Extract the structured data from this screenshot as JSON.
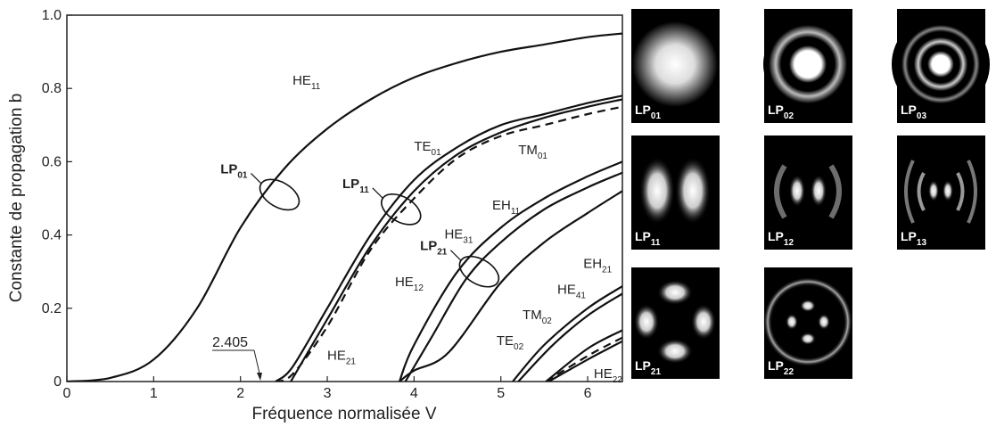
{
  "chart_data": {
    "type": "line",
    "xlabel": "Fréquence normalisée V",
    "ylabel": "Constante de propagation b",
    "xlim": [
      0,
      6.4
    ],
    "ylim": [
      0,
      1.0
    ],
    "x_ticks": [
      "0",
      "1",
      "2",
      "3",
      "4",
      "5",
      "6"
    ],
    "y_ticks": [
      "0",
      "0.2",
      "0.4",
      "0.6",
      "0.8",
      "1.0"
    ],
    "cutoff_annotation": {
      "text": "2.405",
      "x": 2.405
    },
    "series": [
      {
        "name": "HE11",
        "base": "HE",
        "sub": "11",
        "style": "solid",
        "points": [
          [
            0,
            0
          ],
          [
            0.5,
            0.01
          ],
          [
            1,
            0.06
          ],
          [
            1.5,
            0.2
          ],
          [
            2,
            0.42
          ],
          [
            2.5,
            0.58
          ],
          [
            3,
            0.69
          ],
          [
            3.5,
            0.77
          ],
          [
            4,
            0.83
          ],
          [
            4.5,
            0.87
          ],
          [
            5,
            0.9
          ],
          [
            5.5,
            0.92
          ],
          [
            6,
            0.94
          ],
          [
            6.4,
            0.95
          ]
        ]
      },
      {
        "name": "TE01",
        "base": "TE",
        "sub": "01",
        "style": "solid",
        "points": [
          [
            2.405,
            0
          ],
          [
            2.6,
            0.04
          ],
          [
            3,
            0.2
          ],
          [
            3.5,
            0.4
          ],
          [
            4,
            0.55
          ],
          [
            4.5,
            0.64
          ],
          [
            5,
            0.7
          ],
          [
            5.5,
            0.73
          ],
          [
            6,
            0.76
          ],
          [
            6.4,
            0.78
          ]
        ]
      },
      {
        "name": "HE21",
        "base": "HE",
        "sub": "21",
        "style": "solid",
        "points": [
          [
            2.58,
            0
          ],
          [
            3,
            0.17
          ],
          [
            3.5,
            0.37
          ],
          [
            4,
            0.52
          ],
          [
            4.5,
            0.62
          ],
          [
            5,
            0.68
          ],
          [
            5.5,
            0.72
          ],
          [
            6,
            0.75
          ],
          [
            6.4,
            0.77
          ]
        ]
      },
      {
        "name": "TM01",
        "base": "TM",
        "sub": "01",
        "style": "dashed",
        "points": [
          [
            2.405,
            0
          ],
          [
            2.6,
            0.02
          ],
          [
            3,
            0.15
          ],
          [
            3.5,
            0.36
          ],
          [
            4,
            0.5
          ],
          [
            4.5,
            0.61
          ],
          [
            5,
            0.67
          ],
          [
            5.5,
            0.7
          ],
          [
            6,
            0.73
          ],
          [
            6.4,
            0.75
          ]
        ]
      },
      {
        "name": "EH11",
        "base": "EH",
        "sub": "11",
        "style": "solid",
        "points": [
          [
            3.832,
            0
          ],
          [
            4,
            0.1
          ],
          [
            4.5,
            0.3
          ],
          [
            5,
            0.42
          ],
          [
            5.5,
            0.5
          ],
          [
            6,
            0.56
          ],
          [
            6.4,
            0.6
          ]
        ]
      },
      {
        "name": "HE31",
        "base": "HE",
        "sub": "31",
        "style": "solid",
        "points": [
          [
            3.9,
            0
          ],
          [
            4.2,
            0.12
          ],
          [
            4.6,
            0.28
          ],
          [
            5,
            0.38
          ],
          [
            5.5,
            0.47
          ],
          [
            6,
            0.53
          ],
          [
            6.4,
            0.57
          ]
        ]
      },
      {
        "name": "HE12",
        "base": "HE",
        "sub": "12",
        "style": "solid",
        "points": [
          [
            3.832,
            0
          ],
          [
            4,
            0.03
          ],
          [
            4.4,
            0.08
          ],
          [
            5,
            0.27
          ],
          [
            5.5,
            0.38
          ],
          [
            6,
            0.46
          ],
          [
            6.4,
            0.52
          ]
        ]
      },
      {
        "name": "EH21",
        "base": "EH",
        "sub": "21",
        "style": "solid",
        "points": [
          [
            5.136,
            0
          ],
          [
            5.5,
            0.1
          ],
          [
            6,
            0.2
          ],
          [
            6.4,
            0.26
          ]
        ]
      },
      {
        "name": "HE41",
        "base": "HE",
        "sub": "41",
        "style": "solid",
        "points": [
          [
            5.2,
            0
          ],
          [
            5.6,
            0.1
          ],
          [
            6,
            0.18
          ],
          [
            6.4,
            0.24
          ]
        ]
      },
      {
        "name": "TE02",
        "base": "TE",
        "sub": "02",
        "style": "solid",
        "points": [
          [
            5.52,
            0
          ],
          [
            6,
            0.09
          ],
          [
            6.4,
            0.14
          ]
        ]
      },
      {
        "name": "HE22",
        "base": "HE",
        "sub": "22",
        "style": "solid",
        "points": [
          [
            5.55,
            0
          ],
          [
            6,
            0.06
          ],
          [
            6.4,
            0.11
          ]
        ]
      },
      {
        "name": "TM02",
        "base": "TM",
        "sub": "02",
        "style": "dashed",
        "points": [
          [
            5.52,
            0
          ],
          [
            6,
            0.07
          ],
          [
            6.4,
            0.12
          ]
        ]
      }
    ],
    "curve_labels": [
      {
        "base": "HE",
        "sub": "11",
        "x": 2.6,
        "y": 0.81
      },
      {
        "base": "TE",
        "sub": "01",
        "x": 4.0,
        "y": 0.63
      },
      {
        "base": "TM",
        "sub": "01",
        "x": 5.2,
        "y": 0.62
      },
      {
        "base": "EH",
        "sub": "11",
        "x": 4.9,
        "y": 0.47
      },
      {
        "base": "HE",
        "sub": "31",
        "x": 4.35,
        "y": 0.39
      },
      {
        "base": "HE",
        "sub": "12",
        "x": 3.78,
        "y": 0.26
      },
      {
        "base": "HE",
        "sub": "21",
        "x": 3.0,
        "y": 0.06
      },
      {
        "base": "EH",
        "sub": "21",
        "x": 5.95,
        "y": 0.31
      },
      {
        "base": "HE",
        "sub": "41",
        "x": 5.65,
        "y": 0.24
      },
      {
        "base": "TM",
        "sub": "02",
        "x": 5.25,
        "y": 0.17
      },
      {
        "base": "TE",
        "sub": "02",
        "x": 4.95,
        "y": 0.1
      },
      {
        "base": "HE",
        "sub": "22",
        "x": 6.07,
        "y": 0.01
      }
    ],
    "lp_groups": [
      {
        "base": "LP",
        "sub": "01",
        "x": 2.45,
        "y": 0.51
      },
      {
        "base": "LP",
        "sub": "11",
        "x": 3.85,
        "y": 0.47
      },
      {
        "base": "LP",
        "sub": "21",
        "x": 4.75,
        "y": 0.3
      }
    ]
  },
  "mode_tiles": [
    {
      "base": "LP",
      "sub": "01"
    },
    {
      "base": "LP",
      "sub": "02"
    },
    {
      "base": "LP",
      "sub": "03"
    },
    {
      "base": "LP",
      "sub": "11"
    },
    {
      "base": "LP",
      "sub": "12"
    },
    {
      "base": "LP",
      "sub": "13"
    },
    {
      "base": "LP",
      "sub": "21"
    },
    {
      "base": "LP",
      "sub": "22"
    }
  ]
}
